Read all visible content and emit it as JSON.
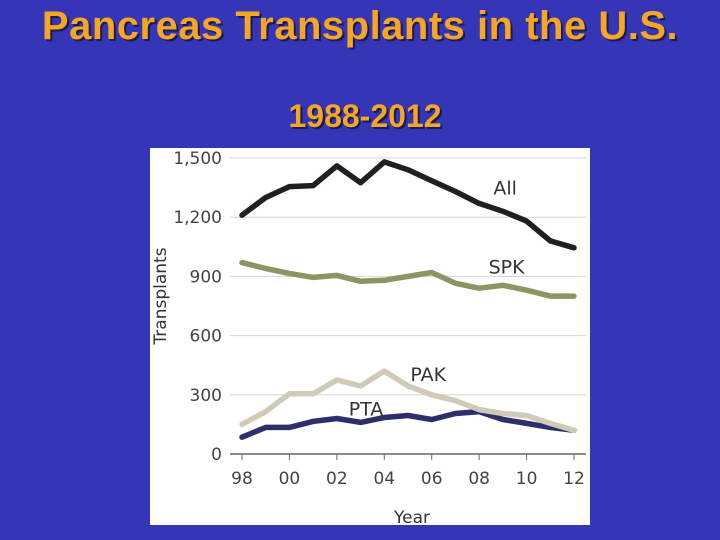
{
  "slide": {
    "title": "Pancreas Transplants in the U.S.",
    "subtitle": "1988-2012"
  },
  "chart_data": {
    "type": "line",
    "xlabel": "Year",
    "ylabel": "Transplants",
    "ylim": [
      0,
      1500
    ],
    "yticks": [
      0,
      300,
      600,
      900,
      1200,
      1500
    ],
    "ytick_labels": [
      "0",
      "300",
      "600",
      "900",
      "1,200",
      "1,500"
    ],
    "xlim": [
      1998,
      2012
    ],
    "xticks": [
      1998,
      2000,
      2002,
      2004,
      2006,
      2008,
      2010,
      2012
    ],
    "xtick_labels": [
      "98",
      "00",
      "02",
      "04",
      "06",
      "08",
      "10",
      "12"
    ],
    "grid": true,
    "x": [
      1998,
      1999,
      2000,
      2001,
      2002,
      2003,
      2004,
      2005,
      2006,
      2007,
      2008,
      2009,
      2010,
      2011,
      2012
    ],
    "series": [
      {
        "name": "All",
        "color": "#231f20",
        "values": [
          1210,
          1300,
          1355,
          1360,
          1460,
          1375,
          1480,
          1440,
          1385,
          1330,
          1270,
          1230,
          1180,
          1080,
          1045
        ]
      },
      {
        "name": "SPK",
        "color": "#8f9464",
        "values": [
          970,
          940,
          915,
          895,
          905,
          875,
          880,
          900,
          920,
          865,
          840,
          855,
          830,
          800,
          800
        ]
      },
      {
        "name": "PAK",
        "color": "#cfcbb8",
        "values": [
          150,
          215,
          305,
          305,
          375,
          345,
          420,
          345,
          300,
          270,
          225,
          205,
          195,
          155,
          120
        ]
      },
      {
        "name": "PTA",
        "color": "#2e2e6b",
        "values": [
          85,
          135,
          135,
          165,
          180,
          160,
          185,
          195,
          175,
          205,
          215,
          175,
          155,
          135,
          120
        ]
      }
    ],
    "annotations": [
      "All",
      "SPK",
      "PAK",
      "PTA"
    ]
  }
}
